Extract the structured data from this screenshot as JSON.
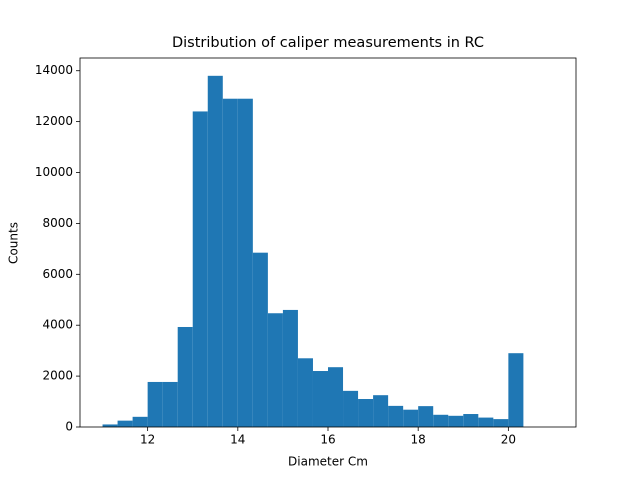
{
  "chart_data": {
    "type": "histogram",
    "title": "Distribution of caliper measurements in RC",
    "x_label": "Diameter Cm",
    "y_label": "Counts",
    "color": "#1f77b4",
    "bins": [
      11,
      11.3333,
      11.6667,
      12,
      12.3333,
      12.6667,
      13,
      13.3333,
      13.6667,
      14,
      14.3333,
      14.6667,
      15,
      15.3333,
      15.6667,
      16,
      16.3333,
      16.6667,
      17,
      17.3333,
      17.6667,
      18,
      18.3333,
      18.6667,
      19,
      19.3333,
      19.6667,
      20,
      20.3333,
      20.6667,
      21
    ],
    "values": [
      100,
      250,
      400,
      1770,
      1770,
      3930,
      12400,
      13800,
      12900,
      12900,
      6850,
      4470,
      4600,
      2700,
      2200,
      2350,
      1420,
      1100,
      1250,
      830,
      680,
      820,
      480,
      440,
      510,
      370,
      310,
      2900,
      0,
      0
    ],
    "xlim": [
      10.5,
      21.5
    ],
    "ylim": [
      0,
      14500
    ],
    "xticks": [
      12,
      14,
      16,
      18,
      20
    ],
    "yticks": [
      0,
      2000,
      4000,
      6000,
      8000,
      10000,
      12000,
      14000
    ]
  }
}
